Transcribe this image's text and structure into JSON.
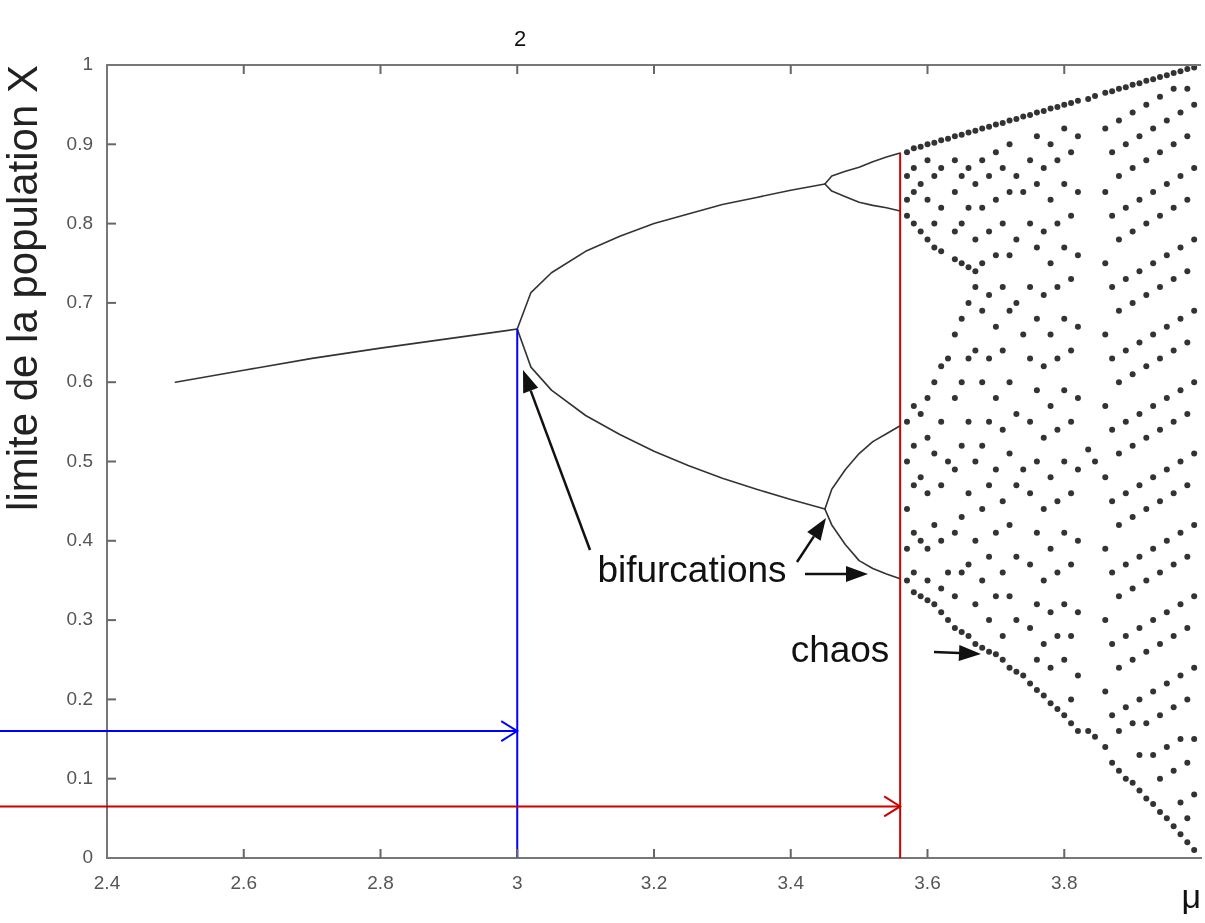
{
  "chart_data": {
    "type": "line",
    "xlabel": "μ",
    "ylabel": "limite de la population X",
    "xlim": [
      2.4,
      4
    ],
    "xticks": [
      2.4,
      2.6,
      2.8,
      3,
      3.2,
      3.4,
      3.6,
      3.8
    ],
    "ylim": [
      0,
      1
    ],
    "yticks": [
      0,
      0.1,
      0.2,
      0.3,
      0.4,
      0.5,
      0.6,
      0.7,
      0.8,
      0.9,
      1
    ],
    "marker": "none",
    "line_style": "solid",
    "annotations": [
      "2",
      "bifurcations",
      "chaos"
    ],
    "ref_lines": [
      {
        "axis": "x",
        "value": 3,
        "color": "#0000ff"
      },
      {
        "axis": "x",
        "value": 3.56,
        "color": "#cc0000"
      },
      {
        "axis": "y",
        "value": 0.16,
        "color": "#0000ff"
      },
      {
        "axis": "y",
        "value": 0.065,
        "color": "#cc0000"
      }
    ],
    "series": [
      {
        "color": "#333333",
        "x": [
          2.5,
          2.6,
          2.7,
          2.8,
          2.9,
          3
        ],
        "values": [
          0.6,
          0.615,
          0.63,
          0.643,
          0.655,
          0.667
        ]
      },
      {
        "color": "#333333",
        "x": [
          3,
          3.02,
          3.05,
          3.1,
          3.15,
          3.2,
          3.25,
          3.3,
          3.35,
          3.4,
          3.45
        ],
        "values": [
          0.667,
          0.713,
          0.738,
          0.765,
          0.784,
          0.8,
          0.812,
          0.824,
          0.833,
          0.842,
          0.85
        ]
      },
      {
        "color": "#333333",
        "x": [
          3,
          3.02,
          3.05,
          3.1,
          3.15,
          3.2,
          3.25,
          3.3,
          3.35,
          3.4,
          3.45
        ],
        "values": [
          0.667,
          0.619,
          0.59,
          0.558,
          0.534,
          0.513,
          0.495,
          0.479,
          0.465,
          0.452,
          0.44
        ]
      },
      {
        "color": "#333333",
        "x": [
          3.45,
          3.46,
          3.48,
          3.5,
          3.52,
          3.54,
          3.56
        ],
        "values": [
          0.85,
          0.86,
          0.866,
          0.871,
          0.878,
          0.884,
          0.889
        ]
      },
      {
        "color": "#333333",
        "x": [
          3.45,
          3.46,
          3.48,
          3.5,
          3.52,
          3.54,
          3.56
        ],
        "values": [
          0.85,
          0.841,
          0.834,
          0.827,
          0.823,
          0.82,
          0.816
        ]
      },
      {
        "color": "#333333",
        "x": [
          3.45,
          3.46,
          3.48,
          3.5,
          3.52,
          3.54,
          3.56
        ],
        "values": [
          0.44,
          0.465,
          0.49,
          0.51,
          0.525,
          0.535,
          0.545
        ]
      },
      {
        "color": "#333333",
        "x": [
          3.45,
          3.46,
          3.48,
          3.5,
          3.52,
          3.54,
          3.56
        ],
        "values": [
          0.44,
          0.42,
          0.395,
          0.375,
          0.365,
          0.358,
          0.352
        ]
      },
      {
        "type": "scatter",
        "marker": "circle",
        "color": "#333333",
        "x": [
          3.57,
          3.57,
          3.57,
          3.57,
          3.57,
          3.57,
          3.57,
          3.57,
          3.57,
          3.58,
          3.58,
          3.58,
          3.58,
          3.58,
          3.58,
          3.58,
          3.58,
          3.58,
          3.58,
          3.59,
          3.59,
          3.59,
          3.59,
          3.59,
          3.59,
          3.59,
          3.6,
          3.6,
          3.6,
          3.6,
          3.6,
          3.6,
          3.6,
          3.6,
          3.6,
          3.6,
          3.61,
          3.61,
          3.61,
          3.61,
          3.61,
          3.61,
          3.61,
          3.61,
          3.62,
          3.62,
          3.62,
          3.62,
          3.62,
          3.62,
          3.62,
          3.62,
          3.62,
          3.62,
          3.63,
          3.63,
          3.63,
          3.63,
          3.63,
          3.64,
          3.64,
          3.64,
          3.64,
          3.64,
          3.64,
          3.64,
          3.64,
          3.64,
          3.64,
          3.64,
          3.65,
          3.65,
          3.65,
          3.65,
          3.65,
          3.65,
          3.65,
          3.65,
          3.65,
          3.65,
          3.66,
          3.66,
          3.66,
          3.66,
          3.66,
          3.66,
          3.66,
          3.66,
          3.66,
          3.66,
          3.67,
          3.67,
          3.67,
          3.67,
          3.67,
          3.67,
          3.67,
          3.67,
          3.67,
          3.67,
          3.68,
          3.68,
          3.68,
          3.68,
          3.68,
          3.68,
          3.68,
          3.68,
          3.68,
          3.68,
          3.69,
          3.69,
          3.69,
          3.69,
          3.69,
          3.69,
          3.69,
          3.69,
          3.69,
          3.69,
          3.7,
          3.7,
          3.7,
          3.7,
          3.7,
          3.7,
          3.7,
          3.7,
          3.7,
          3.7,
          3.71,
          3.71,
          3.71,
          3.71,
          3.71,
          3.71,
          3.71,
          3.71,
          3.71,
          3.71,
          3.72,
          3.72,
          3.72,
          3.72,
          3.72,
          3.72,
          3.72,
          3.72,
          3.72,
          3.72,
          3.73,
          3.73,
          3.73,
          3.73,
          3.73,
          3.73,
          3.73,
          3.73,
          3.73,
          3.74,
          3.74,
          3.74,
          3.74,
          3.74,
          3.75,
          3.75,
          3.75,
          3.75,
          3.75,
          3.75,
          3.75,
          3.75,
          3.75,
          3.75,
          3.76,
          3.76,
          3.76,
          3.76,
          3.76,
          3.76,
          3.76,
          3.76,
          3.76,
          3.76,
          3.76,
          3.77,
          3.77,
          3.77,
          3.77,
          3.77,
          3.77,
          3.77,
          3.77,
          3.77,
          3.77,
          3.78,
          3.78,
          3.78,
          3.78,
          3.78,
          3.78,
          3.78,
          3.78,
          3.78,
          3.78,
          3.78,
          3.79,
          3.79,
          3.79,
          3.79,
          3.79,
          3.79,
          3.79,
          3.79,
          3.79,
          3.79,
          3.8,
          3.8,
          3.8,
          3.8,
          3.8,
          3.8,
          3.8,
          3.8,
          3.8,
          3.8,
          3.8,
          3.81,
          3.81,
          3.81,
          3.81,
          3.81,
          3.81,
          3.81,
          3.81,
          3.81,
          3.81,
          3.81,
          3.82,
          3.82,
          3.82,
          3.82,
          3.82,
          3.82,
          3.82,
          3.82,
          3.82,
          3.82,
          3.82,
          3.835,
          3.835,
          3.835,
          3.845,
          3.845,
          3.845,
          3.86,
          3.86,
          3.86,
          3.86,
          3.86,
          3.86,
          3.86,
          3.86,
          3.86,
          3.86,
          3.86,
          3.87,
          3.87,
          3.87,
          3.87,
          3.87,
          3.87,
          3.87,
          3.87,
          3.87,
          3.87,
          3.87,
          3.88,
          3.88,
          3.88,
          3.88,
          3.88,
          3.88,
          3.88,
          3.88,
          3.88,
          3.88,
          3.88,
          3.88,
          3.89,
          3.89,
          3.89,
          3.89,
          3.89,
          3.89,
          3.89,
          3.89,
          3.89,
          3.89,
          3.89,
          3.9,
          3.9,
          3.9,
          3.9,
          3.9,
          3.9,
          3.9,
          3.9,
          3.9,
          3.9,
          3.9,
          3.9,
          3.91,
          3.91,
          3.91,
          3.91,
          3.91,
          3.91,
          3.91,
          3.91,
          3.91,
          3.91,
          3.91,
          3.91,
          3.92,
          3.92,
          3.92,
          3.92,
          3.92,
          3.92,
          3.92,
          3.92,
          3.92,
          3.92,
          3.92,
          3.92,
          3.93,
          3.93,
          3.93,
          3.93,
          3.93,
          3.93,
          3.93,
          3.93,
          3.93,
          3.93,
          3.93,
          3.93,
          3.94,
          3.94,
          3.94,
          3.94,
          3.94,
          3.94,
          3.94,
          3.94,
          3.94,
          3.94,
          3.94,
          3.94,
          3.94,
          3.95,
          3.95,
          3.95,
          3.95,
          3.95,
          3.95,
          3.95,
          3.95,
          3.95,
          3.95,
          3.95,
          3.95,
          3.96,
          3.96,
          3.96,
          3.96,
          3.96,
          3.96,
          3.96,
          3.96,
          3.96,
          3.96,
          3.96,
          3.96,
          3.96,
          3.97,
          3.97,
          3.97,
          3.97,
          3.97,
          3.97,
          3.97,
          3.97,
          3.97,
          3.97,
          3.97,
          3.97,
          3.97,
          3.98,
          3.98,
          3.98,
          3.98,
          3.98,
          3.98,
          3.98,
          3.98,
          3.98,
          3.98,
          3.98,
          3.98,
          3.98,
          3.98,
          3.99,
          3.99,
          3.99,
          3.99,
          3.99,
          3.99,
          3.99,
          3.99,
          3.99,
          3.99,
          3.99,
          3.99,
          3.99
        ],
        "values": [
          0.89,
          0.86,
          0.83,
          0.81,
          0.55,
          0.5,
          0.44,
          0.39,
          0.35,
          0.895,
          0.87,
          0.84,
          0.8,
          0.57,
          0.52,
          0.47,
          0.41,
          0.36,
          0.335,
          0.897,
          0.85,
          0.79,
          0.56,
          0.48,
          0.4,
          0.33,
          0.9,
          0.88,
          0.83,
          0.78,
          0.58,
          0.53,
          0.46,
          0.39,
          0.35,
          0.325,
          0.902,
          0.86,
          0.8,
          0.77,
          0.6,
          0.51,
          0.42,
          0.32,
          0.905,
          0.87,
          0.82,
          0.765,
          0.62,
          0.55,
          0.47,
          0.4,
          0.34,
          0.31,
          0.907,
          0.63,
          0.5,
          0.36,
          0.3,
          0.91,
          0.88,
          0.84,
          0.79,
          0.755,
          0.66,
          0.58,
          0.49,
          0.41,
          0.33,
          0.29,
          0.912,
          0.86,
          0.8,
          0.75,
          0.68,
          0.6,
          0.52,
          0.43,
          0.36,
          0.285,
          0.915,
          0.87,
          0.82,
          0.745,
          0.7,
          0.63,
          0.55,
          0.46,
          0.37,
          0.28,
          0.917,
          0.85,
          0.78,
          0.74,
          0.72,
          0.64,
          0.5,
          0.4,
          0.32,
          0.27,
          0.92,
          0.88,
          0.82,
          0.75,
          0.69,
          0.6,
          0.52,
          0.44,
          0.35,
          0.265,
          0.922,
          0.86,
          0.79,
          0.71,
          0.63,
          0.55,
          0.47,
          0.38,
          0.3,
          0.26,
          0.925,
          0.89,
          0.83,
          0.76,
          0.67,
          0.58,
          0.49,
          0.41,
          0.33,
          0.257,
          0.927,
          0.87,
          0.8,
          0.72,
          0.64,
          0.54,
          0.45,
          0.36,
          0.28,
          0.25,
          0.93,
          0.9,
          0.84,
          0.76,
          0.69,
          0.6,
          0.51,
          0.42,
          0.33,
          0.24,
          0.932,
          0.86,
          0.78,
          0.7,
          0.56,
          0.47,
          0.38,
          0.3,
          0.235,
          0.935,
          0.84,
          0.66,
          0.49,
          0.23,
          0.937,
          0.88,
          0.8,
          0.72,
          0.63,
          0.55,
          0.46,
          0.37,
          0.29,
          0.22,
          0.94,
          0.91,
          0.85,
          0.77,
          0.68,
          0.59,
          0.5,
          0.41,
          0.32,
          0.25,
          0.212,
          0.942,
          0.87,
          0.79,
          0.71,
          0.62,
          0.53,
          0.44,
          0.35,
          0.27,
          0.205,
          0.945,
          0.9,
          0.83,
          0.75,
          0.66,
          0.57,
          0.48,
          0.39,
          0.31,
          0.24,
          0.195,
          0.947,
          0.88,
          0.8,
          0.72,
          0.63,
          0.54,
          0.45,
          0.36,
          0.28,
          0.188,
          0.95,
          0.92,
          0.85,
          0.77,
          0.68,
          0.59,
          0.5,
          0.41,
          0.32,
          0.25,
          0.18,
          0.952,
          0.89,
          0.81,
          0.73,
          0.64,
          0.55,
          0.46,
          0.37,
          0.28,
          0.2,
          0.17,
          0.955,
          0.91,
          0.84,
          0.76,
          0.67,
          0.58,
          0.49,
          0.4,
          0.31,
          0.23,
          0.16,
          0.957,
          0.515,
          0.16,
          0.961,
          0.5,
          0.153,
          0.965,
          0.92,
          0.84,
          0.75,
          0.66,
          0.57,
          0.48,
          0.39,
          0.3,
          0.21,
          0.14,
          0.967,
          0.89,
          0.81,
          0.72,
          0.63,
          0.54,
          0.45,
          0.36,
          0.27,
          0.18,
          0.12,
          0.97,
          0.93,
          0.86,
          0.78,
          0.69,
          0.6,
          0.51,
          0.42,
          0.33,
          0.24,
          0.16,
          0.11,
          0.972,
          0.9,
          0.82,
          0.73,
          0.64,
          0.55,
          0.46,
          0.37,
          0.28,
          0.19,
          0.1,
          0.975,
          0.94,
          0.87,
          0.79,
          0.7,
          0.61,
          0.52,
          0.43,
          0.34,
          0.25,
          0.17,
          0.095,
          0.977,
          0.91,
          0.83,
          0.74,
          0.65,
          0.56,
          0.47,
          0.38,
          0.29,
          0.2,
          0.13,
          0.085,
          0.98,
          0.95,
          0.88,
          0.8,
          0.71,
          0.62,
          0.53,
          0.44,
          0.35,
          0.26,
          0.17,
          0.075,
          0.982,
          0.92,
          0.84,
          0.75,
          0.66,
          0.57,
          0.48,
          0.39,
          0.3,
          0.21,
          0.13,
          0.068,
          0.985,
          0.96,
          0.89,
          0.81,
          0.72,
          0.63,
          0.54,
          0.45,
          0.36,
          0.27,
          0.18,
          0.1,
          0.058,
          0.987,
          0.93,
          0.85,
          0.76,
          0.67,
          0.58,
          0.49,
          0.4,
          0.31,
          0.22,
          0.14,
          0.05,
          0.99,
          0.97,
          0.9,
          0.82,
          0.73,
          0.64,
          0.55,
          0.46,
          0.37,
          0.28,
          0.19,
          0.11,
          0.04,
          0.992,
          0.94,
          0.86,
          0.77,
          0.68,
          0.59,
          0.5,
          0.41,
          0.32,
          0.23,
          0.15,
          0.07,
          0.03,
          0.995,
          0.97,
          0.91,
          0.83,
          0.74,
          0.65,
          0.56,
          0.47,
          0.38,
          0.29,
          0.2,
          0.12,
          0.05,
          0.02,
          0.997,
          0.95,
          0.87,
          0.78,
          0.69,
          0.6,
          0.51,
          0.42,
          0.33,
          0.24,
          0.15,
          0.08,
          0.01
        ]
      }
    ]
  }
}
